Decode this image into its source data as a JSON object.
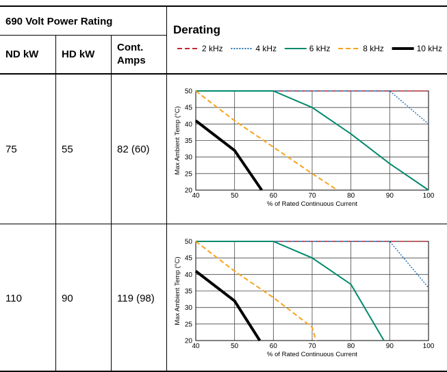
{
  "table": {
    "header_group": "690 Volt Power Rating",
    "derating_header": "Derating",
    "col_nd": "ND kW",
    "col_hd": "HD kW",
    "col_amps": "Cont. Amps",
    "rows": [
      {
        "nd": "75",
        "hd": "55",
        "amps": "82 (60)"
      },
      {
        "nd": "110",
        "hd": "90",
        "amps": "119 (98)"
      }
    ]
  },
  "legend": [
    {
      "label": "2 kHz",
      "color": "#c0272d",
      "style": "dashed"
    },
    {
      "label": "4 kHz",
      "color": "#1f6db5",
      "style": "dotted"
    },
    {
      "label": "6 kHz",
      "color": "#00896b",
      "style": "solid"
    },
    {
      "label": "8 kHz",
      "color": "#f7a21b",
      "style": "dashed"
    },
    {
      "label": "10 kHz",
      "color": "#000000",
      "style": "solid"
    }
  ],
  "chart_data": [
    {
      "type": "line",
      "xlabel": "% of Rated Continuous Current",
      "ylabel": "Max Ambient Temp (°C)",
      "xlim": [
        40,
        100
      ],
      "ylim": [
        20,
        50
      ],
      "xticks": [
        "40",
        "50",
        "60",
        "70",
        "80",
        "90",
        "100"
      ],
      "yticks": [
        "20",
        "25",
        "30",
        "35",
        "40",
        "45",
        "50"
      ],
      "grid": true,
      "series": [
        {
          "name": "2 kHz",
          "x": [
            40,
            100
          ],
          "y": [
            50,
            50
          ]
        },
        {
          "name": "4 kHz",
          "x": [
            40,
            90,
            100
          ],
          "y": [
            50,
            50,
            40
          ]
        },
        {
          "name": "6 kHz",
          "x": [
            40,
            60,
            70,
            80,
            90,
            100
          ],
          "y": [
            50,
            50,
            45,
            37,
            28,
            20
          ]
        },
        {
          "name": "8 kHz",
          "x": [
            40,
            50,
            60,
            70,
            76.5
          ],
          "y": [
            50,
            41,
            33,
            25,
            20
          ]
        },
        {
          "name": "10 kHz",
          "x": [
            40,
            50,
            57
          ],
          "y": [
            41,
            32,
            20
          ]
        }
      ]
    },
    {
      "type": "line",
      "xlabel": "% of Rated Continuous Current",
      "ylabel": "Max Ambient Temp (°C)",
      "xlim": [
        40,
        100
      ],
      "ylim": [
        20,
        50
      ],
      "xticks": [
        "40",
        "50",
        "60",
        "70",
        "80",
        "90",
        "100"
      ],
      "yticks": [
        "20",
        "25",
        "30",
        "35",
        "40",
        "45",
        "50"
      ],
      "grid": true,
      "series": [
        {
          "name": "2 kHz",
          "x": [
            40,
            100
          ],
          "y": [
            50,
            50
          ]
        },
        {
          "name": "4 kHz",
          "x": [
            40,
            90,
            100
          ],
          "y": [
            50,
            50,
            36
          ]
        },
        {
          "name": "6 kHz",
          "x": [
            40,
            60,
            70,
            80,
            88.5
          ],
          "y": [
            50,
            50,
            45,
            37,
            20
          ]
        },
        {
          "name": "8 kHz",
          "x": [
            40,
            50,
            60,
            70,
            71
          ],
          "y": [
            50,
            41,
            33,
            24,
            20
          ]
        },
        {
          "name": "10 kHz",
          "x": [
            40,
            50,
            56.5
          ],
          "y": [
            41,
            32,
            20
          ]
        }
      ]
    }
  ]
}
